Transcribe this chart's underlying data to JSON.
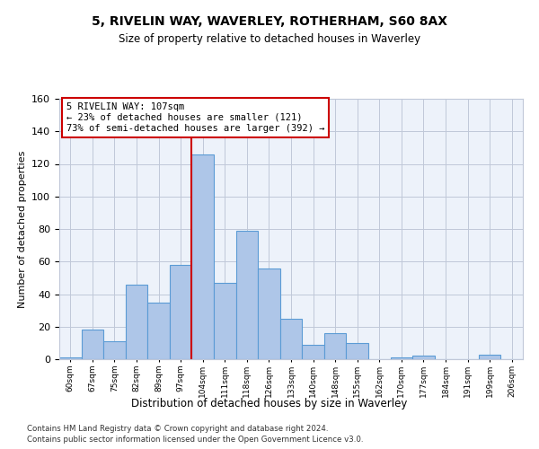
{
  "title": "5, RIVELIN WAY, WAVERLEY, ROTHERHAM, S60 8AX",
  "subtitle": "Size of property relative to detached houses in Waverley",
  "xlabel": "Distribution of detached houses by size in Waverley",
  "ylabel": "Number of detached properties",
  "bin_labels": [
    "60sqm",
    "67sqm",
    "75sqm",
    "82sqm",
    "89sqm",
    "97sqm",
    "104sqm",
    "111sqm",
    "118sqm",
    "126sqm",
    "133sqm",
    "140sqm",
    "148sqm",
    "155sqm",
    "162sqm",
    "170sqm",
    "177sqm",
    "184sqm",
    "191sqm",
    "199sqm",
    "206sqm"
  ],
  "bar_values": [
    1,
    18,
    11,
    46,
    35,
    58,
    126,
    47,
    79,
    56,
    25,
    9,
    16,
    10,
    0,
    1,
    2,
    0,
    0,
    3,
    0
  ],
  "bar_color": "#aec6e8",
  "bar_edge_color": "#5b9bd5",
  "vline_color": "#cc0000",
  "annotation_lines": [
    "5 RIVELIN WAY: 107sqm",
    "← 23% of detached houses are smaller (121)",
    "73% of semi-detached houses are larger (392) →"
  ],
  "annotation_box_color": "#ffffff",
  "annotation_box_edge": "#cc0000",
  "ylim": [
    0,
    160
  ],
  "yticks": [
    0,
    20,
    40,
    60,
    80,
    100,
    120,
    140,
    160
  ],
  "background_color": "#edf2fa",
  "footer_line1": "Contains HM Land Registry data © Crown copyright and database right 2024.",
  "footer_line2": "Contains public sector information licensed under the Open Government Licence v3.0."
}
